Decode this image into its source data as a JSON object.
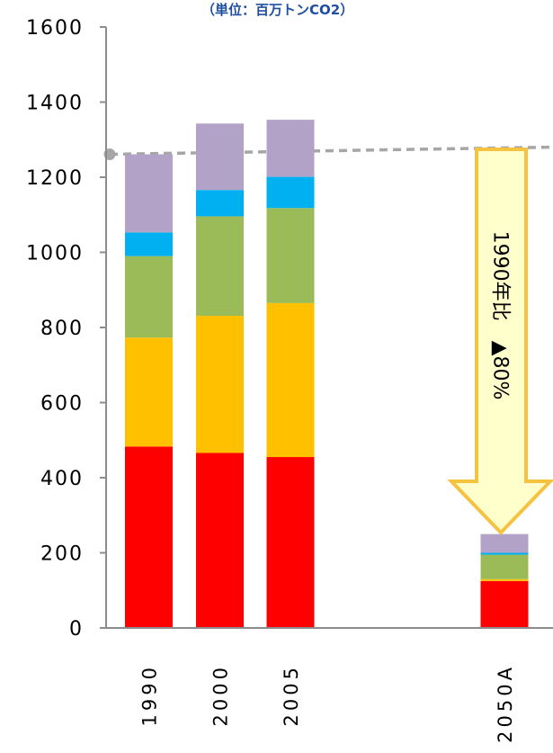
{
  "chart_data": {
    "type": "bar",
    "stacked": true,
    "title": "（単位：百万トンCO2）",
    "categories": [
      "1990",
      "2000",
      "2005",
      "2050A"
    ],
    "ylim": [
      0,
      1600
    ],
    "yticks": [
      0,
      200,
      400,
      600,
      800,
      1000,
      1200,
      1400,
      1600
    ],
    "grid": false,
    "series": [
      {
        "color": "#ff0000",
        "values": [
          483,
          466,
          455,
          125
        ]
      },
      {
        "color": "#ffc000",
        "values": [
          290,
          365,
          410,
          5
        ]
      },
      {
        "color": "#9bbb59",
        "values": [
          217,
          265,
          253,
          65
        ]
      },
      {
        "color": "#00b0f0",
        "values": [
          63,
          70,
          83,
          5
        ]
      },
      {
        "color": "#b3a2c7",
        "values": [
          208,
          177,
          152,
          50
        ]
      }
    ],
    "reference_line": {
      "value": 1261,
      "color": "#a6a6a6",
      "style": "dashed"
    },
    "annotation": {
      "text": "1990年比　▲80%",
      "fill": "#ffffcc",
      "stroke": "#f5c242"
    }
  }
}
